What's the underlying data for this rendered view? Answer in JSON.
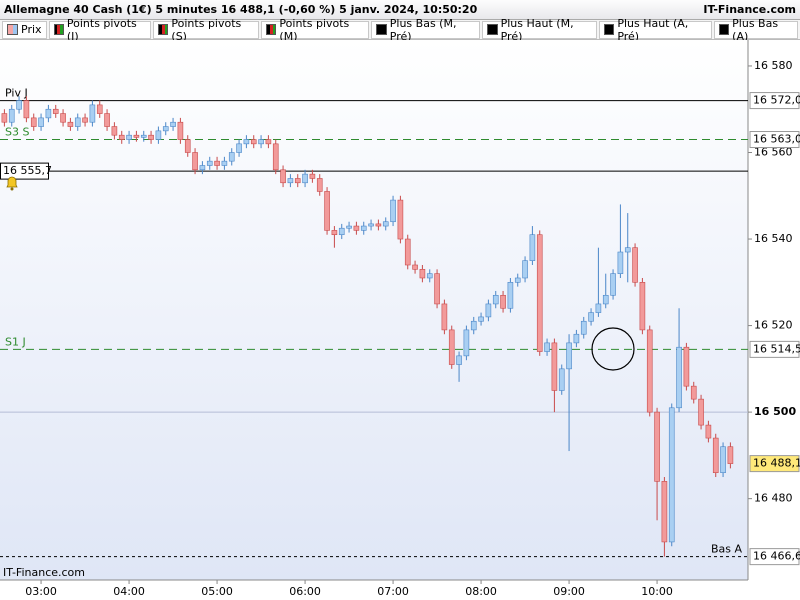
{
  "title": "Allemagne 40 Cash (1€) 5 minutes 16 488,1 (-0,60 %) 5 janv. 2024, 10:50:20",
  "source": "IT-Finance.com",
  "legend": [
    {
      "label": "Prix",
      "colors": [
        "#f4a6a6",
        "#9ec5f0"
      ]
    },
    {
      "label": "Points pivots (J)",
      "colors": [
        "#000000",
        "#d22222",
        "#22a022"
      ]
    },
    {
      "label": "Points pivots (S)",
      "colors": [
        "#000000",
        "#d22222",
        "#22a022"
      ]
    },
    {
      "label": "Points pivots (M)",
      "colors": [
        "#000000",
        "#d22222",
        "#22a022"
      ]
    },
    {
      "label": "Plus Bas (M, Pré)",
      "colors": [
        "#000000"
      ]
    },
    {
      "label": "Plus Haut (M, Pré)",
      "colors": [
        "#000000"
      ]
    },
    {
      "label": "Plus Haut (A, Pré)",
      "colors": [
        "#000000"
      ]
    },
    {
      "label": "Plus Bas (A)",
      "colors": [
        "#000000"
      ]
    }
  ],
  "chart_data": {
    "type": "candlestick",
    "watermark": "IT-Finance.com",
    "up_color": "#a9cff2",
    "up_edge": "#4a86c8",
    "down_color": "#f29a9a",
    "down_edge": "#c84a4a",
    "xlim": [
      152,
      662
    ],
    "xticks": [
      {
        "value": 180,
        "label": "03:00"
      },
      {
        "value": 240,
        "label": "04:00"
      },
      {
        "value": 300,
        "label": "05:00"
      },
      {
        "value": 360,
        "label": "06:00"
      },
      {
        "value": 420,
        "label": "07:00"
      },
      {
        "value": 480,
        "label": "08:00"
      },
      {
        "value": 540,
        "label": "09:00"
      },
      {
        "value": 600,
        "label": "10:00"
      }
    ],
    "ylim": [
      16461.2,
      16586.0
    ],
    "yticks": [
      {
        "value": 16480,
        "label": "16 480"
      },
      {
        "value": 16500,
        "label": "16 500",
        "emphasis": true
      },
      {
        "value": 16520,
        "label": "16 520"
      },
      {
        "value": 16540,
        "label": "16 540"
      },
      {
        "value": 16560,
        "label": "16 560"
      },
      {
        "value": 16580,
        "label": "16 580"
      }
    ],
    "levels": [
      {
        "name": "Piv J",
        "value": 16572.0,
        "label": "16 572,0",
        "color": "#000000",
        "style": "solid"
      },
      {
        "name": "S3 S",
        "value": 16563.0,
        "label": "16 563,0",
        "color": "#2e8b2e",
        "style": "dashed"
      },
      {
        "value": 16555.7,
        "label": "16 555,7",
        "color": "#000000",
        "style": "solid",
        "label_side": "left"
      },
      {
        "name": "S1 J",
        "value": 16514.5,
        "label": "16 514,5",
        "color": "#2e8b2e",
        "style": "dashed"
      },
      {
        "value": 16488.1,
        "label": "16 488,1",
        "color": "#000000",
        "style": "none",
        "box_color": "#ffe97a"
      },
      {
        "name": "Bas A",
        "value": 16466.6,
        "label": "16 466,6",
        "color": "#000000",
        "style": "dotted",
        "name_side": "right"
      }
    ],
    "x": [
      155,
      160,
      165,
      170,
      175,
      180,
      185,
      190,
      195,
      200,
      205,
      210,
      215,
      220,
      225,
      230,
      235,
      240,
      245,
      250,
      255,
      260,
      265,
      270,
      275,
      280,
      285,
      290,
      295,
      300,
      305,
      310,
      315,
      320,
      325,
      330,
      335,
      340,
      345,
      350,
      355,
      360,
      365,
      370,
      375,
      380,
      385,
      390,
      395,
      400,
      405,
      410,
      415,
      420,
      425,
      430,
      435,
      440,
      445,
      450,
      455,
      460,
      465,
      470,
      475,
      480,
      485,
      490,
      495,
      500,
      505,
      510,
      515,
      520,
      525,
      530,
      535,
      540,
      545,
      550,
      555,
      560,
      565,
      570,
      575,
      580,
      585,
      590,
      595,
      600,
      605,
      610,
      615,
      620,
      625,
      630,
      635,
      640,
      645,
      650
    ],
    "open": [
      16569,
      16567,
      16570,
      16572,
      16568,
      16566,
      16568,
      16570,
      16569,
      16567,
      16566,
      16568,
      16567,
      16571,
      16569,
      16566,
      16564,
      16563,
      16564,
      16563.5,
      16564,
      16563,
      16565,
      16566,
      16567,
      16563,
      16560,
      16556,
      16557,
      16558,
      16557,
      16558,
      16560,
      16562,
      16563,
      16562,
      16563,
      16562,
      16556,
      16553,
      16554,
      16553,
      16555,
      16554,
      16551,
      16542,
      16541,
      16542.5,
      16543,
      16542,
      16543,
      16543.5,
      16543,
      16544,
      16549,
      16540,
      16534,
      16533,
      16531,
      16532,
      16525,
      16519,
      16511,
      16513,
      16519,
      16521,
      16522,
      16525,
      16527,
      16524,
      16530,
      16531,
      16535,
      16541,
      16514,
      16516,
      16505,
      16510,
      16516,
      16518,
      16521,
      16523,
      16525,
      16527,
      16532,
      16537,
      16538,
      16530,
      16519,
      16500,
      16484,
      16470,
      16501,
      16515,
      16506,
      16503,
      16497,
      16494,
      16486,
      16492
    ],
    "high": [
      16570,
      16571,
      16573,
      16573,
      16569,
      16569,
      16571,
      16571,
      16570,
      16568,
      16569,
      16569,
      16572,
      16572,
      16570,
      16567,
      16565,
      16565,
      16565,
      16565,
      16565,
      16566,
      16567,
      16568,
      16568,
      16564,
      16561,
      16558,
      16559,
      16559,
      16559,
      16561,
      16563,
      16564,
      16564,
      16564,
      16564,
      16563,
      16557,
      16555,
      16555,
      16556,
      16556,
      16555,
      16552,
      16543,
      16543.5,
      16544,
      16544,
      16544,
      16544.5,
      16544.5,
      16545,
      16550,
      16550,
      16541,
      16535,
      16534,
      16533,
      16533,
      16526,
      16520,
      16514,
      16520,
      16522,
      16523,
      16526,
      16528,
      16528,
      16531,
      16532,
      16536,
      16543,
      16542,
      16517,
      16517,
      16511,
      16518,
      16519,
      16522,
      16524,
      16538,
      16532,
      16533,
      16548,
      16546,
      16539,
      16531,
      16520,
      16501,
      16485,
      16502,
      16524,
      16516,
      16507,
      16504,
      16498,
      16495,
      16493,
      16493
    ],
    "low": [
      16566,
      16566,
      16569,
      16567,
      16565,
      16565,
      16567,
      16568,
      16566,
      16565,
      16565,
      16566,
      16566,
      16568,
      16565,
      16563,
      16562,
      16562,
      16562.5,
      16562.5,
      16562,
      16562,
      16564,
      16565,
      16562,
      16559,
      16555,
      16555,
      16556,
      16556,
      16556,
      16557,
      16559,
      16561,
      16561,
      16561,
      16561,
      16555,
      16552,
      16552,
      16552,
      16552,
      16553,
      16550,
      16541,
      16538,
      16540,
      16541.5,
      16541,
      16541,
      16542,
      16542,
      16542,
      16543,
      16539,
      16533,
      16532,
      16530,
      16530,
      16524,
      16518,
      16510,
      16507,
      16512,
      16518,
      16520,
      16521,
      16524,
      16523,
      16523,
      16529,
      16530,
      16534,
      16513,
      16513,
      16500,
      16504,
      16491,
      16515,
      16517,
      16520,
      16522,
      16524,
      16526,
      16531,
      16530,
      16529,
      16518,
      16499,
      16475,
      16466.6,
      16469,
      16500,
      16505,
      16502,
      16496,
      16493,
      16485,
      16485,
      16487
    ],
    "close": [
      16567,
      16570,
      16572,
      16568,
      16566,
      16568,
      16570,
      16569,
      16567,
      16566,
      16568,
      16567,
      16571,
      16569,
      16566,
      16564,
      16563,
      16564,
      16563.5,
      16564,
      16563,
      16565,
      16566,
      16567,
      16563,
      16560,
      16556,
      16557,
      16558,
      16557,
      16558,
      16560,
      16562,
      16563,
      16562,
      16563,
      16562,
      16556,
      16553,
      16554,
      16553,
      16555,
      16554,
      16551,
      16542,
      16541,
      16542.5,
      16543,
      16542,
      16543,
      16543.5,
      16543,
      16544,
      16549,
      16540,
      16534,
      16533,
      16531,
      16532,
      16525,
      16519,
      16511,
      16513,
      16519,
      16521,
      16522,
      16525,
      16527,
      16524,
      16530,
      16531,
      16535,
      16541,
      16514,
      16516,
      16505,
      16510,
      16516,
      16518,
      16521,
      16523,
      16525,
      16527,
      16532,
      16537,
      16538,
      16530,
      16519,
      16500,
      16484,
      16470,
      16501,
      16515,
      16506,
      16503,
      16497,
      16494,
      16486,
      16492,
      16488.1
    ]
  }
}
